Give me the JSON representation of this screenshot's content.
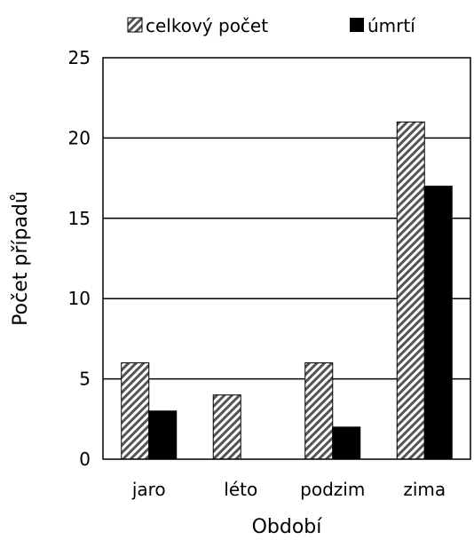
{
  "chart_data": {
    "type": "bar",
    "title": "",
    "xlabel": "Období",
    "ylabel": "Počet případů",
    "categories": [
      "jaro",
      "léto",
      "podzim",
      "zima"
    ],
    "series": [
      {
        "name": "celkový počet",
        "values": [
          6,
          4,
          6,
          21
        ],
        "fill": "hatched"
      },
      {
        "name": "úmrtí",
        "values": [
          3,
          0,
          2,
          17
        ],
        "fill": "#000000"
      }
    ],
    "ylim": [
      0,
      25
    ],
    "yticks": [
      0,
      5,
      10,
      15,
      20,
      25
    ],
    "grid": true,
    "legend_position": "top"
  }
}
